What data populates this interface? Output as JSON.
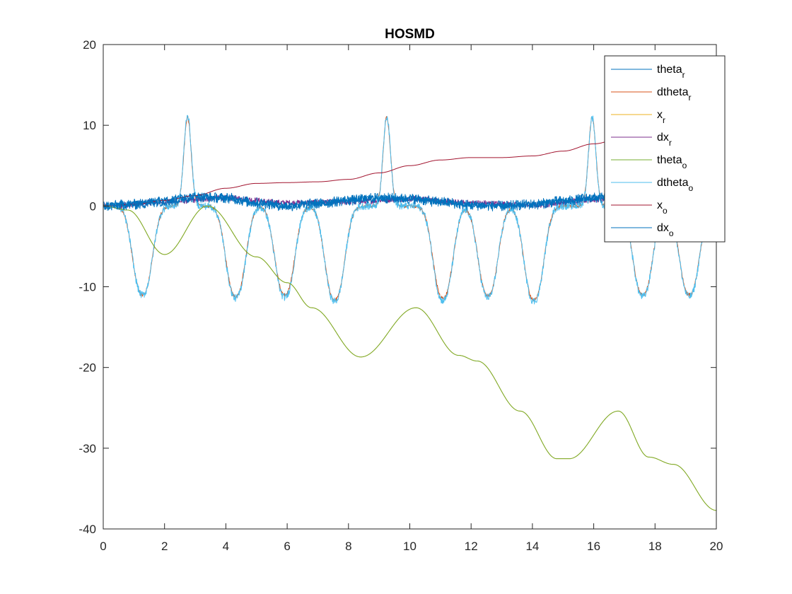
{
  "chart_data": {
    "type": "line",
    "title": "HOSMD",
    "xlabel": "",
    "ylabel": "",
    "xlim": [
      0,
      20
    ],
    "ylim": [
      -40,
      20
    ],
    "xticks": [
      0,
      2,
      4,
      6,
      8,
      10,
      12,
      14,
      16,
      18,
      20
    ],
    "yticks": [
      -40,
      -30,
      -20,
      -10,
      0,
      10,
      20
    ],
    "x_tick_labels": [
      "0",
      "2",
      "4",
      "6",
      "8",
      "10",
      "12",
      "14",
      "16",
      "18",
      "20"
    ],
    "y_tick_labels": [
      "-40",
      "-30",
      "-20",
      "-10",
      "0",
      "10",
      "20"
    ],
    "grid": false,
    "legend_position": "top-right",
    "series": [
      {
        "name": "theta_r",
        "label_main": "theta",
        "label_sub": "r",
        "color": "#0072BD",
        "line": "solid",
        "shape": "noise_around_zero",
        "x": [
          0,
          1,
          2,
          3,
          4,
          5,
          6,
          7,
          8,
          9,
          10,
          11,
          12,
          13,
          14,
          15,
          16,
          17,
          18,
          19,
          20
        ],
        "values": [
          0.0,
          0.3,
          0.8,
          1.2,
          1.0,
          0.4,
          0.0,
          0.3,
          0.8,
          1.0,
          0.9,
          0.5,
          0.1,
          0.0,
          0.2,
          0.6,
          1.0,
          1.1,
          0.8,
          0.4,
          0.2
        ]
      },
      {
        "name": "dtheta_r",
        "label_main": "dtheta",
        "label_sub": "r",
        "color": "#D95319",
        "line": "solid",
        "shape": "spikes",
        "peaks": [
          [
            2.75,
            11.0
          ],
          [
            9.25,
            11.0
          ],
          [
            15.95,
            11.0
          ]
        ],
        "troughs": [
          [
            1.28,
            -11.0
          ],
          [
            4.32,
            -11.2
          ],
          [
            5.92,
            -11.0
          ],
          [
            7.55,
            -11.6
          ],
          [
            11.08,
            -11.4
          ],
          [
            12.55,
            -11.1
          ],
          [
            14.05,
            -11.6
          ],
          [
            17.6,
            -11.0
          ],
          [
            19.12,
            -11.0
          ]
        ]
      },
      {
        "name": "x_r",
        "label_main": "x",
        "label_sub": "r",
        "color": "#EDB120",
        "line": "solid",
        "shape": "staircase",
        "x": [
          0,
          0.8,
          2.0,
          3.4,
          5.0,
          6.0,
          6.8,
          8.4,
          10.2,
          11.6,
          12.2,
          13.6,
          14.8,
          15.2,
          16.8,
          17.8,
          18.6,
          20
        ],
        "values": [
          0.0,
          -0.5,
          -6.0,
          0.0,
          -6.3,
          -9.5,
          -12.6,
          -18.7,
          -12.6,
          -18.5,
          -19.2,
          -25.4,
          -31.3,
          -31.3,
          -25.4,
          -31.1,
          -32.0,
          -37.7
        ]
      },
      {
        "name": "dx_r",
        "label_main": "dx",
        "label_sub": "r",
        "color": "#7E2F8E",
        "line": "solid",
        "shape": "noise_around_zero",
        "x": [
          0,
          2,
          4,
          6,
          8,
          10,
          12,
          14,
          16,
          18,
          20
        ],
        "values": [
          0.0,
          0.5,
          1.0,
          0.4,
          0.5,
          0.9,
          0.4,
          0.1,
          0.8,
          0.9,
          0.3
        ]
      },
      {
        "name": "theta_o",
        "label_main": "theta",
        "label_sub": "o",
        "color": "#77AC30",
        "line": "solid",
        "shape": "staircase",
        "x": [
          0,
          0.8,
          2.0,
          3.4,
          5.0,
          6.0,
          6.8,
          8.4,
          10.2,
          11.6,
          12.2,
          13.6,
          14.8,
          15.2,
          16.8,
          17.8,
          18.6,
          20
        ],
        "values": [
          0.0,
          -0.5,
          -6.0,
          0.0,
          -6.3,
          -9.5,
          -12.6,
          -18.7,
          -12.6,
          -18.5,
          -19.2,
          -25.4,
          -31.3,
          -31.3,
          -25.4,
          -31.1,
          -32.0,
          -37.7
        ]
      },
      {
        "name": "dtheta_o",
        "label_main": "dtheta",
        "label_sub": "o",
        "color": "#4DBEEE",
        "line": "solid",
        "shape": "spikes",
        "peaks": [
          [
            2.75,
            11.3
          ],
          [
            9.25,
            11.1
          ],
          [
            15.95,
            11.0
          ]
        ],
        "troughs": [
          [
            1.28,
            -11.0
          ],
          [
            4.32,
            -11.4
          ],
          [
            5.92,
            -11.3
          ],
          [
            7.55,
            -11.8
          ],
          [
            11.08,
            -11.7
          ],
          [
            12.55,
            -11.3
          ],
          [
            14.05,
            -11.8
          ],
          [
            17.6,
            -11.2
          ],
          [
            19.12,
            -11.2
          ]
        ]
      },
      {
        "name": "x_o",
        "label_main": "x",
        "label_sub": "o",
        "color": "#A2142F",
        "line": "solid",
        "shape": "smooth",
        "x": [
          0,
          1,
          2,
          3,
          4,
          5,
          6,
          7,
          8,
          9,
          10,
          11,
          12,
          13,
          14,
          15,
          16,
          17,
          18,
          19,
          20
        ],
        "values": [
          0.0,
          0.2,
          0.7,
          1.3,
          2.2,
          2.8,
          2.9,
          3.0,
          3.3,
          4.1,
          5.0,
          5.7,
          6.0,
          6.0,
          6.2,
          6.8,
          7.7,
          8.5,
          8.7,
          8.8,
          9.1
        ]
      },
      {
        "name": "dx_o",
        "label_main": "dx",
        "label_sub": "o",
        "color": "#0072BD",
        "line": "solid",
        "shape": "noise_around_zero",
        "x": [
          0,
          1,
          2,
          3,
          4,
          5,
          6,
          7,
          8,
          9,
          10,
          11,
          12,
          13,
          14,
          15,
          16,
          17,
          18,
          19,
          20
        ],
        "values": [
          0.0,
          0.2,
          0.6,
          1.1,
          1.0,
          0.4,
          0.0,
          0.3,
          0.7,
          1.0,
          0.9,
          0.5,
          0.1,
          0.0,
          0.2,
          0.6,
          1.0,
          1.0,
          0.7,
          0.3,
          0.2
        ]
      }
    ]
  }
}
